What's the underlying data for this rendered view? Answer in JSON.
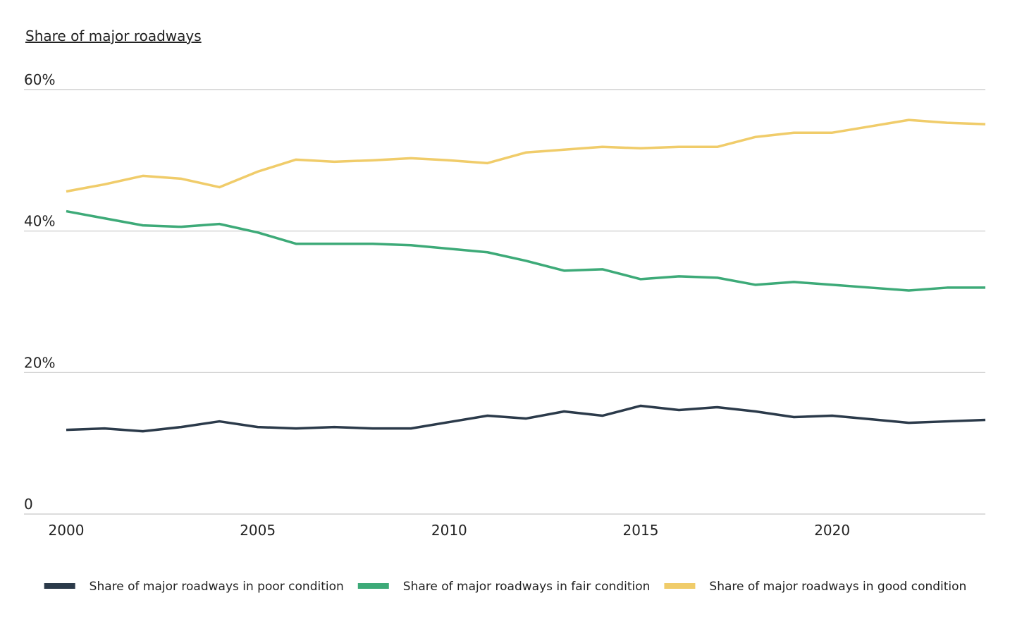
{
  "chart_data": {
    "type": "line",
    "title": "Share of major roadways",
    "x": [
      2000,
      2001,
      2002,
      2003,
      2004,
      2005,
      2006,
      2007,
      2008,
      2009,
      2010,
      2011,
      2012,
      2013,
      2014,
      2015,
      2016,
      2017,
      2018,
      2019,
      2020,
      2021,
      2022,
      2023,
      2024
    ],
    "series": [
      {
        "name": "Share of major roadways in poor condition",
        "color": "#2b3a4a",
        "values": [
          11.9,
          12.1,
          11.7,
          12.3,
          13.1,
          12.3,
          12.1,
          12.3,
          12.1,
          12.1,
          13.0,
          13.9,
          13.5,
          14.5,
          13.9,
          15.3,
          14.7,
          15.1,
          14.5,
          13.7,
          13.9,
          13.4,
          12.9,
          13.1,
          13.3
        ]
      },
      {
        "name": "Share of major roadways in fair condition",
        "color": "#3daa78",
        "values": [
          42.8,
          41.8,
          40.8,
          40.6,
          41.0,
          39.8,
          38.2,
          38.2,
          38.2,
          38.0,
          37.5,
          37.0,
          35.8,
          34.4,
          34.6,
          33.2,
          33.6,
          33.4,
          32.4,
          32.8,
          32.4,
          32.0,
          31.6,
          32.0,
          32.0
        ]
      },
      {
        "name": "Share of major roadways in good condition",
        "color": "#f0cc6a",
        "values": [
          45.6,
          46.6,
          47.8,
          47.4,
          46.2,
          48.4,
          50.1,
          49.8,
          50.0,
          50.3,
          50.0,
          49.6,
          51.1,
          51.5,
          51.9,
          51.7,
          51.9,
          51.9,
          53.3,
          53.9,
          53.9,
          54.8,
          55.7,
          55.3,
          55.1
        ]
      }
    ],
    "xlim": [
      2000,
      2024
    ],
    "xticks": [
      2000,
      2005,
      2010,
      2015,
      2020
    ],
    "ylim": [
      0,
      60
    ],
    "yticks": [
      0,
      {
        "value": 20,
        "label": "20%"
      },
      {
        "value": 40,
        "label": "40%"
      },
      {
        "value": 60,
        "label": "60%"
      }
    ],
    "grid": true,
    "legend": "bottom"
  }
}
